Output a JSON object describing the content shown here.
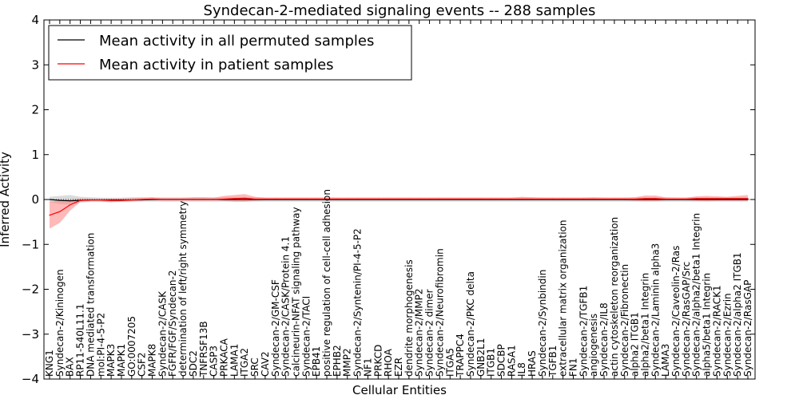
{
  "chart_data": {
    "type": "line",
    "title": "Syndecan-2-mediated signaling events -- 288 samples",
    "xlabel": "Cellular Entities",
    "ylabel": "Inferred Activity",
    "ylim": [
      -4,
      4
    ],
    "yticks": [
      4,
      3,
      2,
      1,
      0,
      -1,
      -2,
      -3,
      -4
    ],
    "ytick_labels": [
      "4",
      "3",
      "2",
      "1",
      "0",
      "−1",
      "−2",
      "−3",
      "−4"
    ],
    "categories": [
      "KNG1",
      "Syndecan-2/Kininogen",
      "BAX",
      "RP11-540L11.1",
      "DNA mediated transformation",
      "mol:PI-4-5-P2",
      "MAPK3",
      "MAPK1",
      "GO:0007205",
      "CSF2",
      "MAPK8",
      "Syndecan-2/CASK",
      "FGFR/FGF/Syndecan-2",
      "determination of left/right symmetry",
      "SDC2",
      "TNFRSF13B",
      "CASP3",
      "PRKACA",
      "LAMA1",
      "ITGA2",
      "SRC",
      "CAV2",
      "Syndecan-2/GM-CSF",
      "Syndecan-2/CASK/Protein 4.1",
      "calcineurin-NFAT signaling pathway",
      "Syndecan-2/TACI",
      "EPB41",
      "positive regulation of cell-cell adhesion",
      "EPHB2",
      "MMP2",
      "Syndecan-2/Syntenin/PI-4-5-P2",
      "NF1",
      "PRKCD",
      "RHOA",
      "EZR",
      "dendrite morphogenesis",
      "Syndecan-2/MMP2",
      "Syndecan-2 dimer",
      "Syndecan-2/Neurofibromin",
      "ITGA5",
      "TRAPPC4",
      "Syndecan-2/PKC delta",
      "GNB2L1",
      "ITGB1",
      "SDCBP",
      "RASA1",
      "IL8",
      "HRAS",
      "Syndecan-2/Synbindin",
      "TGFB1",
      "extracellular matrix organization",
      "FN1",
      "Syndecan-2/TGFB1",
      "angiogenesis",
      "Syndecan-2/IL8",
      "actin cytoskeleton reorganization",
      "Syndecan-2/Fibronectin",
      "alpha2 ITGB1",
      "alpha2/beta1 Integrin",
      "Syndecan-2/Laminin alpha3",
      "LAMA3",
      "Syndecan-2/Caveolin-2/Ras",
      "Syndecan-2/RasGAP/Src",
      "Syndecan-2/alpha2/beta1 Integrin",
      "alpha5/beta1 Integrin",
      "Syndecan-2/RACK1",
      "Syndecan-2/Ezrin",
      "Syndecan-2/alpha2 ITGB1",
      "Syndecan-2/RasGAP"
    ],
    "series": [
      {
        "name": "Mean activity in all permuted samples",
        "color": "#000000",
        "band_color": "#b0b0b0",
        "values": [
          0.0,
          -0.02,
          -0.03,
          -0.02,
          -0.01,
          -0.01,
          -0.01,
          -0.01,
          -0.01,
          -0.01,
          0.0,
          0.0,
          0.0,
          0.0,
          0.0,
          0.0,
          0.0,
          0.0,
          0.0,
          0.0,
          0.0,
          0.0,
          0.0,
          0.0,
          0.0,
          0.0,
          0.0,
          0.0,
          0.0,
          0.0,
          0.0,
          0.0,
          0.0,
          0.0,
          0.0,
          0.0,
          0.0,
          0.0,
          0.0,
          0.0,
          0.0,
          0.0,
          0.0,
          0.0,
          0.0,
          0.0,
          0.0,
          0.0,
          0.0,
          0.0,
          0.0,
          0.0,
          0.0,
          0.0,
          0.0,
          0.0,
          0.0,
          0.0,
          0.0,
          0.0,
          0.0,
          0.0,
          0.0,
          0.0,
          0.0,
          0.0,
          0.0,
          0.0,
          0.0
        ],
        "lower": [
          -0.06,
          -0.1,
          -0.12,
          -0.07,
          -0.05,
          -0.05,
          -0.06,
          -0.05,
          -0.05,
          -0.05,
          -0.05,
          -0.05,
          -0.05,
          -0.05,
          -0.05,
          -0.05,
          -0.05,
          -0.05,
          -0.05,
          -0.05,
          -0.05,
          -0.05,
          -0.05,
          -0.05,
          -0.05,
          -0.05,
          -0.05,
          -0.05,
          -0.05,
          -0.05,
          -0.05,
          -0.05,
          -0.05,
          -0.05,
          -0.05,
          -0.05,
          -0.05,
          -0.05,
          -0.05,
          -0.05,
          -0.05,
          -0.05,
          -0.05,
          -0.05,
          -0.05,
          -0.05,
          -0.05,
          -0.05,
          -0.05,
          -0.05,
          -0.05,
          -0.05,
          -0.05,
          -0.05,
          -0.05,
          -0.05,
          -0.05,
          -0.05,
          -0.05,
          -0.05,
          -0.05,
          -0.05,
          -0.05,
          -0.05,
          -0.05,
          -0.05,
          -0.05,
          -0.05,
          -0.05
        ],
        "upper": [
          0.06,
          0.08,
          0.1,
          0.06,
          0.05,
          0.04,
          0.04,
          0.04,
          0.05,
          0.05,
          0.05,
          0.05,
          0.05,
          0.05,
          0.05,
          0.05,
          0.05,
          0.05,
          0.05,
          0.05,
          0.05,
          0.05,
          0.05,
          0.05,
          0.05,
          0.05,
          0.05,
          0.05,
          0.05,
          0.05,
          0.05,
          0.05,
          0.05,
          0.05,
          0.05,
          0.05,
          0.05,
          0.05,
          0.05,
          0.05,
          0.05,
          0.05,
          0.05,
          0.05,
          0.05,
          0.05,
          0.05,
          0.05,
          0.05,
          0.05,
          0.05,
          0.05,
          0.05,
          0.05,
          0.05,
          0.05,
          0.05,
          0.05,
          0.05,
          0.05,
          0.05,
          0.05,
          0.05,
          0.05,
          0.05,
          0.05,
          0.05,
          0.05,
          0.05
        ]
      },
      {
        "name": "Mean activity in patient samples",
        "color": "#ff0000",
        "band_color": "#ff8080",
        "values": [
          -0.35,
          -0.27,
          -0.12,
          -0.02,
          -0.01,
          -0.01,
          -0.02,
          -0.02,
          -0.01,
          0.0,
          0.01,
          0.0,
          0.0,
          0.0,
          0.0,
          0.0,
          0.0,
          0.01,
          0.02,
          0.03,
          0.01,
          0.01,
          0.01,
          0.01,
          0.01,
          0.01,
          0.01,
          0.01,
          0.01,
          0.01,
          0.01,
          0.01,
          0.01,
          0.01,
          0.01,
          0.01,
          0.01,
          0.01,
          0.01,
          0.01,
          0.01,
          0.01,
          0.01,
          0.01,
          0.01,
          0.01,
          0.01,
          0.01,
          0.01,
          0.01,
          0.01,
          0.01,
          0.01,
          0.01,
          0.01,
          0.01,
          0.01,
          0.01,
          0.02,
          0.02,
          0.01,
          0.01,
          0.01,
          0.02,
          0.02,
          0.02,
          0.02,
          0.02,
          0.02
        ],
        "lower": [
          -0.65,
          -0.52,
          -0.25,
          -0.05,
          -0.04,
          -0.04,
          -0.06,
          -0.05,
          -0.04,
          -0.02,
          -0.02,
          -0.02,
          -0.02,
          -0.02,
          -0.02,
          -0.02,
          -0.02,
          -0.03,
          -0.05,
          -0.05,
          -0.03,
          -0.02,
          -0.02,
          -0.02,
          -0.02,
          -0.02,
          -0.02,
          -0.02,
          -0.02,
          -0.02,
          -0.02,
          -0.02,
          -0.02,
          -0.02,
          -0.02,
          -0.02,
          -0.02,
          -0.02,
          -0.02,
          -0.02,
          -0.02,
          -0.02,
          -0.02,
          -0.02,
          -0.02,
          -0.02,
          -0.02,
          -0.02,
          -0.02,
          -0.02,
          -0.02,
          -0.02,
          -0.02,
          -0.02,
          -0.02,
          -0.02,
          -0.02,
          -0.03,
          -0.04,
          -0.04,
          -0.02,
          -0.02,
          -0.02,
          -0.03,
          -0.04,
          -0.03,
          -0.03,
          -0.03,
          -0.03
        ],
        "upper": [
          -0.05,
          -0.02,
          0.0,
          0.02,
          0.02,
          0.02,
          0.02,
          0.02,
          0.03,
          0.04,
          0.05,
          0.03,
          0.03,
          0.03,
          0.05,
          0.05,
          0.04,
          0.08,
          0.1,
          0.12,
          0.06,
          0.04,
          0.04,
          0.04,
          0.04,
          0.04,
          0.04,
          0.04,
          0.04,
          0.04,
          0.04,
          0.04,
          0.04,
          0.04,
          0.04,
          0.04,
          0.04,
          0.04,
          0.04,
          0.04,
          0.04,
          0.04,
          0.04,
          0.04,
          0.04,
          0.04,
          0.06,
          0.05,
          0.04,
          0.04,
          0.04,
          0.04,
          0.04,
          0.05,
          0.04,
          0.04,
          0.04,
          0.05,
          0.09,
          0.09,
          0.05,
          0.04,
          0.04,
          0.07,
          0.08,
          0.07,
          0.06,
          0.08,
          0.1
        ]
      }
    ],
    "legend": {
      "position": "top-left",
      "labels": [
        "Mean activity in all permuted samples",
        "Mean activity in patient samples"
      ]
    },
    "grid": false
  }
}
